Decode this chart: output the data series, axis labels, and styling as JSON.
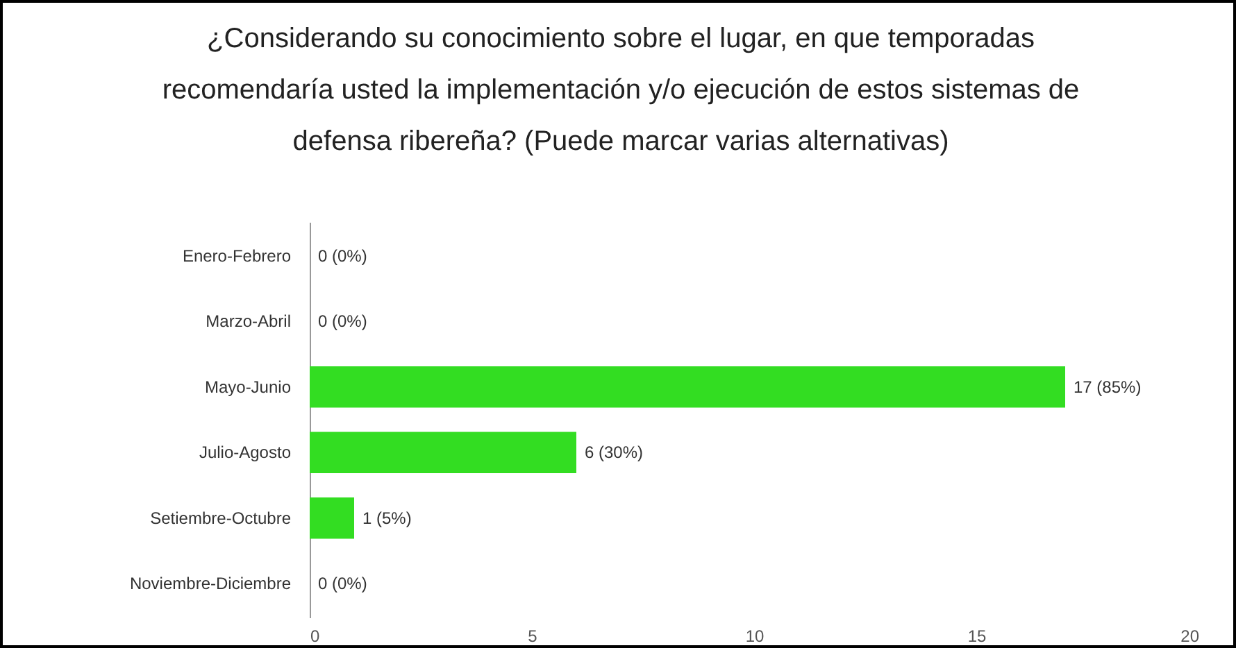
{
  "chart_data": {
    "type": "bar",
    "orientation": "horizontal",
    "title": "¿Considerando su conocimiento sobre el lugar, en que temporadas recomendaría usted la implementación y/o ejecución de estos sistemas de defensa ribereña?  (Puede marcar varias alternativas)",
    "categories": [
      "Enero-Febrero",
      "Marzo-Abril",
      "Mayo-Junio",
      "Julio-Agosto",
      "Setiembre-Octubre",
      "Noviembre-Diciembre"
    ],
    "values": [
      0,
      0,
      17,
      6,
      1,
      0
    ],
    "value_labels": [
      "0 (0%)",
      "0 (0%)",
      "17 (85%)",
      "6 (30%)",
      "1 (5%)",
      "0 (0%)"
    ],
    "color": "#33dd22",
    "xlim": [
      0,
      20
    ],
    "xticks": [
      0,
      5,
      10,
      15,
      20
    ],
    "grid": false
  }
}
